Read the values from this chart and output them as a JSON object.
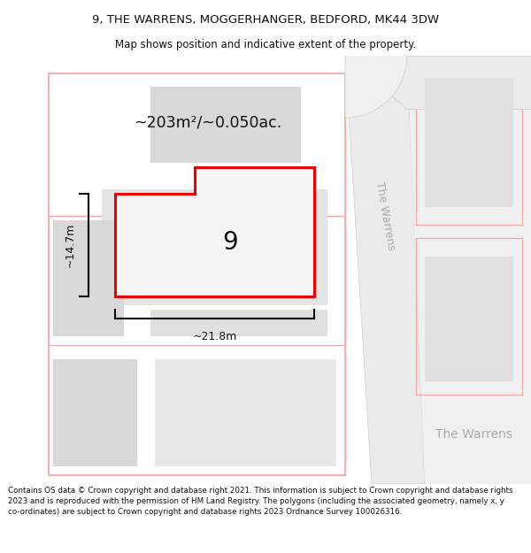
{
  "title_line1": "9, THE WARRENS, MOGGERHANGER, BEDFORD, MK44 3DW",
  "title_line2": "Map shows position and indicative extent of the property.",
  "footer_text": "Contains OS data © Crown copyright and database right 2021. This information is subject to Crown copyright and database rights 2023 and is reproduced with the permission of HM Land Registry. The polygons (including the associated geometry, namely x, y co-ordinates) are subject to Crown copyright and database rights 2023 Ordnance Survey 100026316.",
  "area_label": "~203m²/~0.050ac.",
  "width_label": "~21.8m",
  "height_label": "~14.7m",
  "property_number": "9",
  "bg_color": "#ffffff",
  "map_bg": "#f7f7f7",
  "road_fill": "#ebebeb",
  "road_edge_color": "#cccccc",
  "plot_line_color": "#f4aaaa",
  "highlight_color": "#ee0000",
  "building_fill": "#d8d8d8",
  "road_label_color": "#aaaaaa",
  "title_color": "#111111",
  "footer_color": "#111111"
}
